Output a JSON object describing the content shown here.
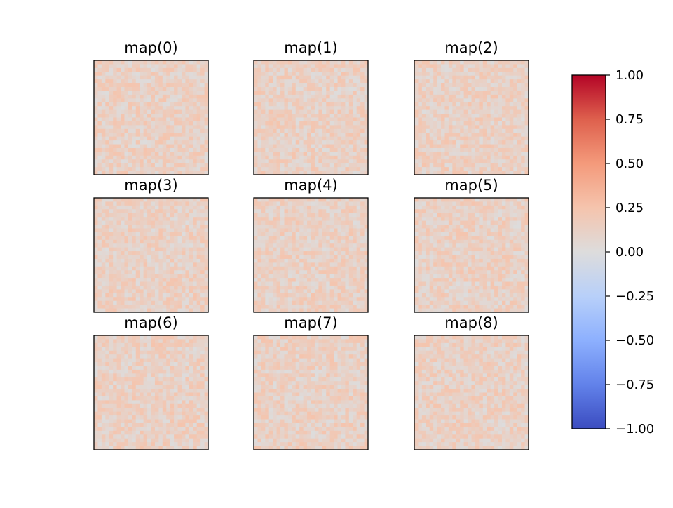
{
  "chart_data": {
    "type": "heatmap",
    "colormap": "coolwarm",
    "vmin": -1.0,
    "vmax": 1.0,
    "grid": {
      "rows": 3,
      "cols": 3
    },
    "heatmap_size": {
      "rows": 30,
      "cols": 30
    },
    "value_range_estimate": [
      0.0,
      0.25
    ],
    "panels": [
      {
        "title": "map(0)"
      },
      {
        "title": "map(1)"
      },
      {
        "title": "map(2)"
      },
      {
        "title": "map(3)"
      },
      {
        "title": "map(4)"
      },
      {
        "title": "map(5)"
      },
      {
        "title": "map(6)"
      },
      {
        "title": "map(7)"
      },
      {
        "title": "map(8)"
      }
    ],
    "colorbar": {
      "ticks": [
        1.0,
        0.75,
        0.5,
        0.25,
        0.0,
        -0.25,
        -0.5,
        -0.75,
        -1.0
      ],
      "tick_labels": [
        "1.00",
        "0.75",
        "0.50",
        "0.25",
        "0.00",
        "−0.25",
        "−0.50",
        "−0.75",
        "−1.00"
      ]
    }
  }
}
